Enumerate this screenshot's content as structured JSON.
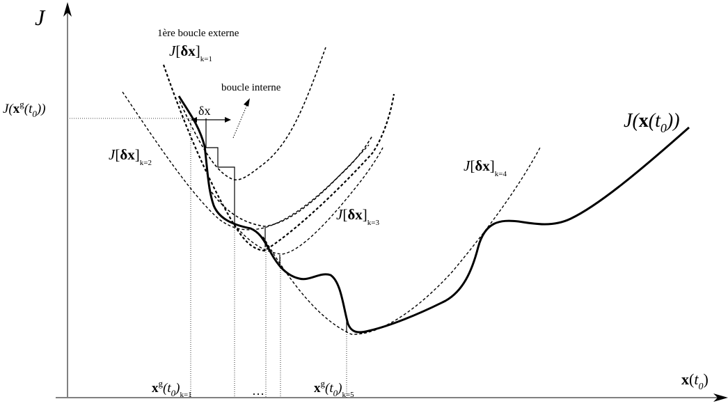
{
  "labels": {
    "y_axis_symbol": "J",
    "x_axis": {
      "main": "x",
      "paren_open": "(",
      "t": "t",
      "sub0": "0",
      "paren_close": ")"
    },
    "cost_curve": {
      "J": "J",
      "paren_open": "(",
      "x": "x",
      "t_paren": "(t",
      "sub0": "0",
      "close": "))"
    },
    "initial_value": {
      "prefix": "J(",
      "x": "x",
      "sup_g": "g",
      "t_paren": "(t",
      "sub0": "0",
      "close": "))"
    },
    "first_outer_loop": "1ère boucle externe",
    "inner_loop": "boucle interne",
    "step": "δx",
    "ellipsis": "…",
    "local_models": [
      {
        "J": "J",
        "open": "[",
        "dx": "δx",
        "close": "]",
        "sub": "k=1"
      },
      {
        "J": "J",
        "open": "[",
        "dx": "δx",
        "close": "]",
        "sub": "k=2"
      },
      {
        "J": "J",
        "open": "[",
        "dx": "δx",
        "close": "]",
        "sub": "k=3"
      },
      {
        "J": "J",
        "open": "[",
        "dx": "δx",
        "close": "]",
        "sub": "k=4"
      }
    ],
    "guess_k1": {
      "x": "x",
      "sup_g": "g",
      "t_paren": "(t",
      "sub0": "0",
      "close": ")",
      "sub_k": "k=1"
    },
    "guess_k5": {
      "x": "x",
      "sup_g": "g",
      "t_paren": "(t",
      "sub0": "0",
      "close": ")",
      "sub_k": "k=5"
    }
  }
}
